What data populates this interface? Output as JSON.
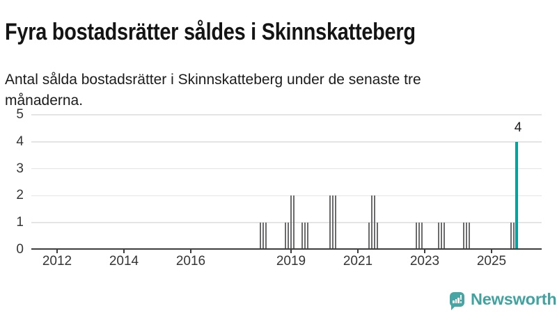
{
  "header": {
    "title": "Fyra bostadsrätter såldes i Skinnskatteberg",
    "subtitle_lines": [
      "Antal sålda bostadsrätter i Skinnskatteberg under de senaste tre",
      "månaderna."
    ]
  },
  "chart_data": {
    "type": "bar",
    "title": "Fyra bostadsrätter såldes i Skinnskatteberg",
    "subtitle": "Antal sålda bostadsrätter i Skinnskatteberg under de senaste tre månaderna.",
    "y_axis": {
      "min": 0,
      "max": 5,
      "tick_values": [
        0,
        1,
        2,
        3,
        4,
        5
      ],
      "grid": true
    },
    "x_axis": {
      "start_year_fraction": 2011.25,
      "end_year_fraction": 2026.3,
      "ticks": [
        {
          "label": "2012",
          "year": 2012
        },
        {
          "label": "2014",
          "year": 2014
        },
        {
          "label": "2016",
          "year": 2016
        },
        {
          "label": "2019",
          "year": 2019
        },
        {
          "label": "2021",
          "year": 2021
        },
        {
          "label": "2023",
          "year": 2023
        },
        {
          "label": "2025",
          "year": 2025
        }
      ]
    },
    "bars": [
      {
        "month": "2018-02",
        "value": 1
      },
      {
        "month": "2018-03",
        "value": 1
      },
      {
        "month": "2018-04",
        "value": 1
      },
      {
        "month": "2018-11",
        "value": 1
      },
      {
        "month": "2018-12",
        "value": 1
      },
      {
        "month": "2019-01",
        "value": 2
      },
      {
        "month": "2019-02",
        "value": 2
      },
      {
        "month": "2019-05",
        "value": 1
      },
      {
        "month": "2019-06",
        "value": 1
      },
      {
        "month": "2019-07",
        "value": 1
      },
      {
        "month": "2020-03",
        "value": 2
      },
      {
        "month": "2020-04",
        "value": 2
      },
      {
        "month": "2020-05",
        "value": 2
      },
      {
        "month": "2021-05",
        "value": 1
      },
      {
        "month": "2021-06",
        "value": 2
      },
      {
        "month": "2021-07",
        "value": 2
      },
      {
        "month": "2021-08",
        "value": 1
      },
      {
        "month": "2022-10",
        "value": 1
      },
      {
        "month": "2022-11",
        "value": 1
      },
      {
        "month": "2022-12",
        "value": 1
      },
      {
        "month": "2023-06",
        "value": 1
      },
      {
        "month": "2023-07",
        "value": 1
      },
      {
        "month": "2023-08",
        "value": 1
      },
      {
        "month": "2024-03",
        "value": 1
      },
      {
        "month": "2024-04",
        "value": 1
      },
      {
        "month": "2024-05",
        "value": 1
      },
      {
        "month": "2025-08",
        "value": 1
      },
      {
        "month": "2025-09",
        "value": 1
      },
      {
        "month": "2025-10",
        "value": 4,
        "highlight": true
      }
    ],
    "highlight_label": "4",
    "colors": {
      "bar": "#6b6b6e",
      "highlight": "#00a29e",
      "gridline": "#e4e4e4",
      "axis": "#3d3d3d"
    }
  },
  "branding": {
    "logo_text": "Newsworthy",
    "logo_color": "#3fa3a0",
    "logo_icon": "newsworthy-speech-bubble-bar-chart"
  }
}
